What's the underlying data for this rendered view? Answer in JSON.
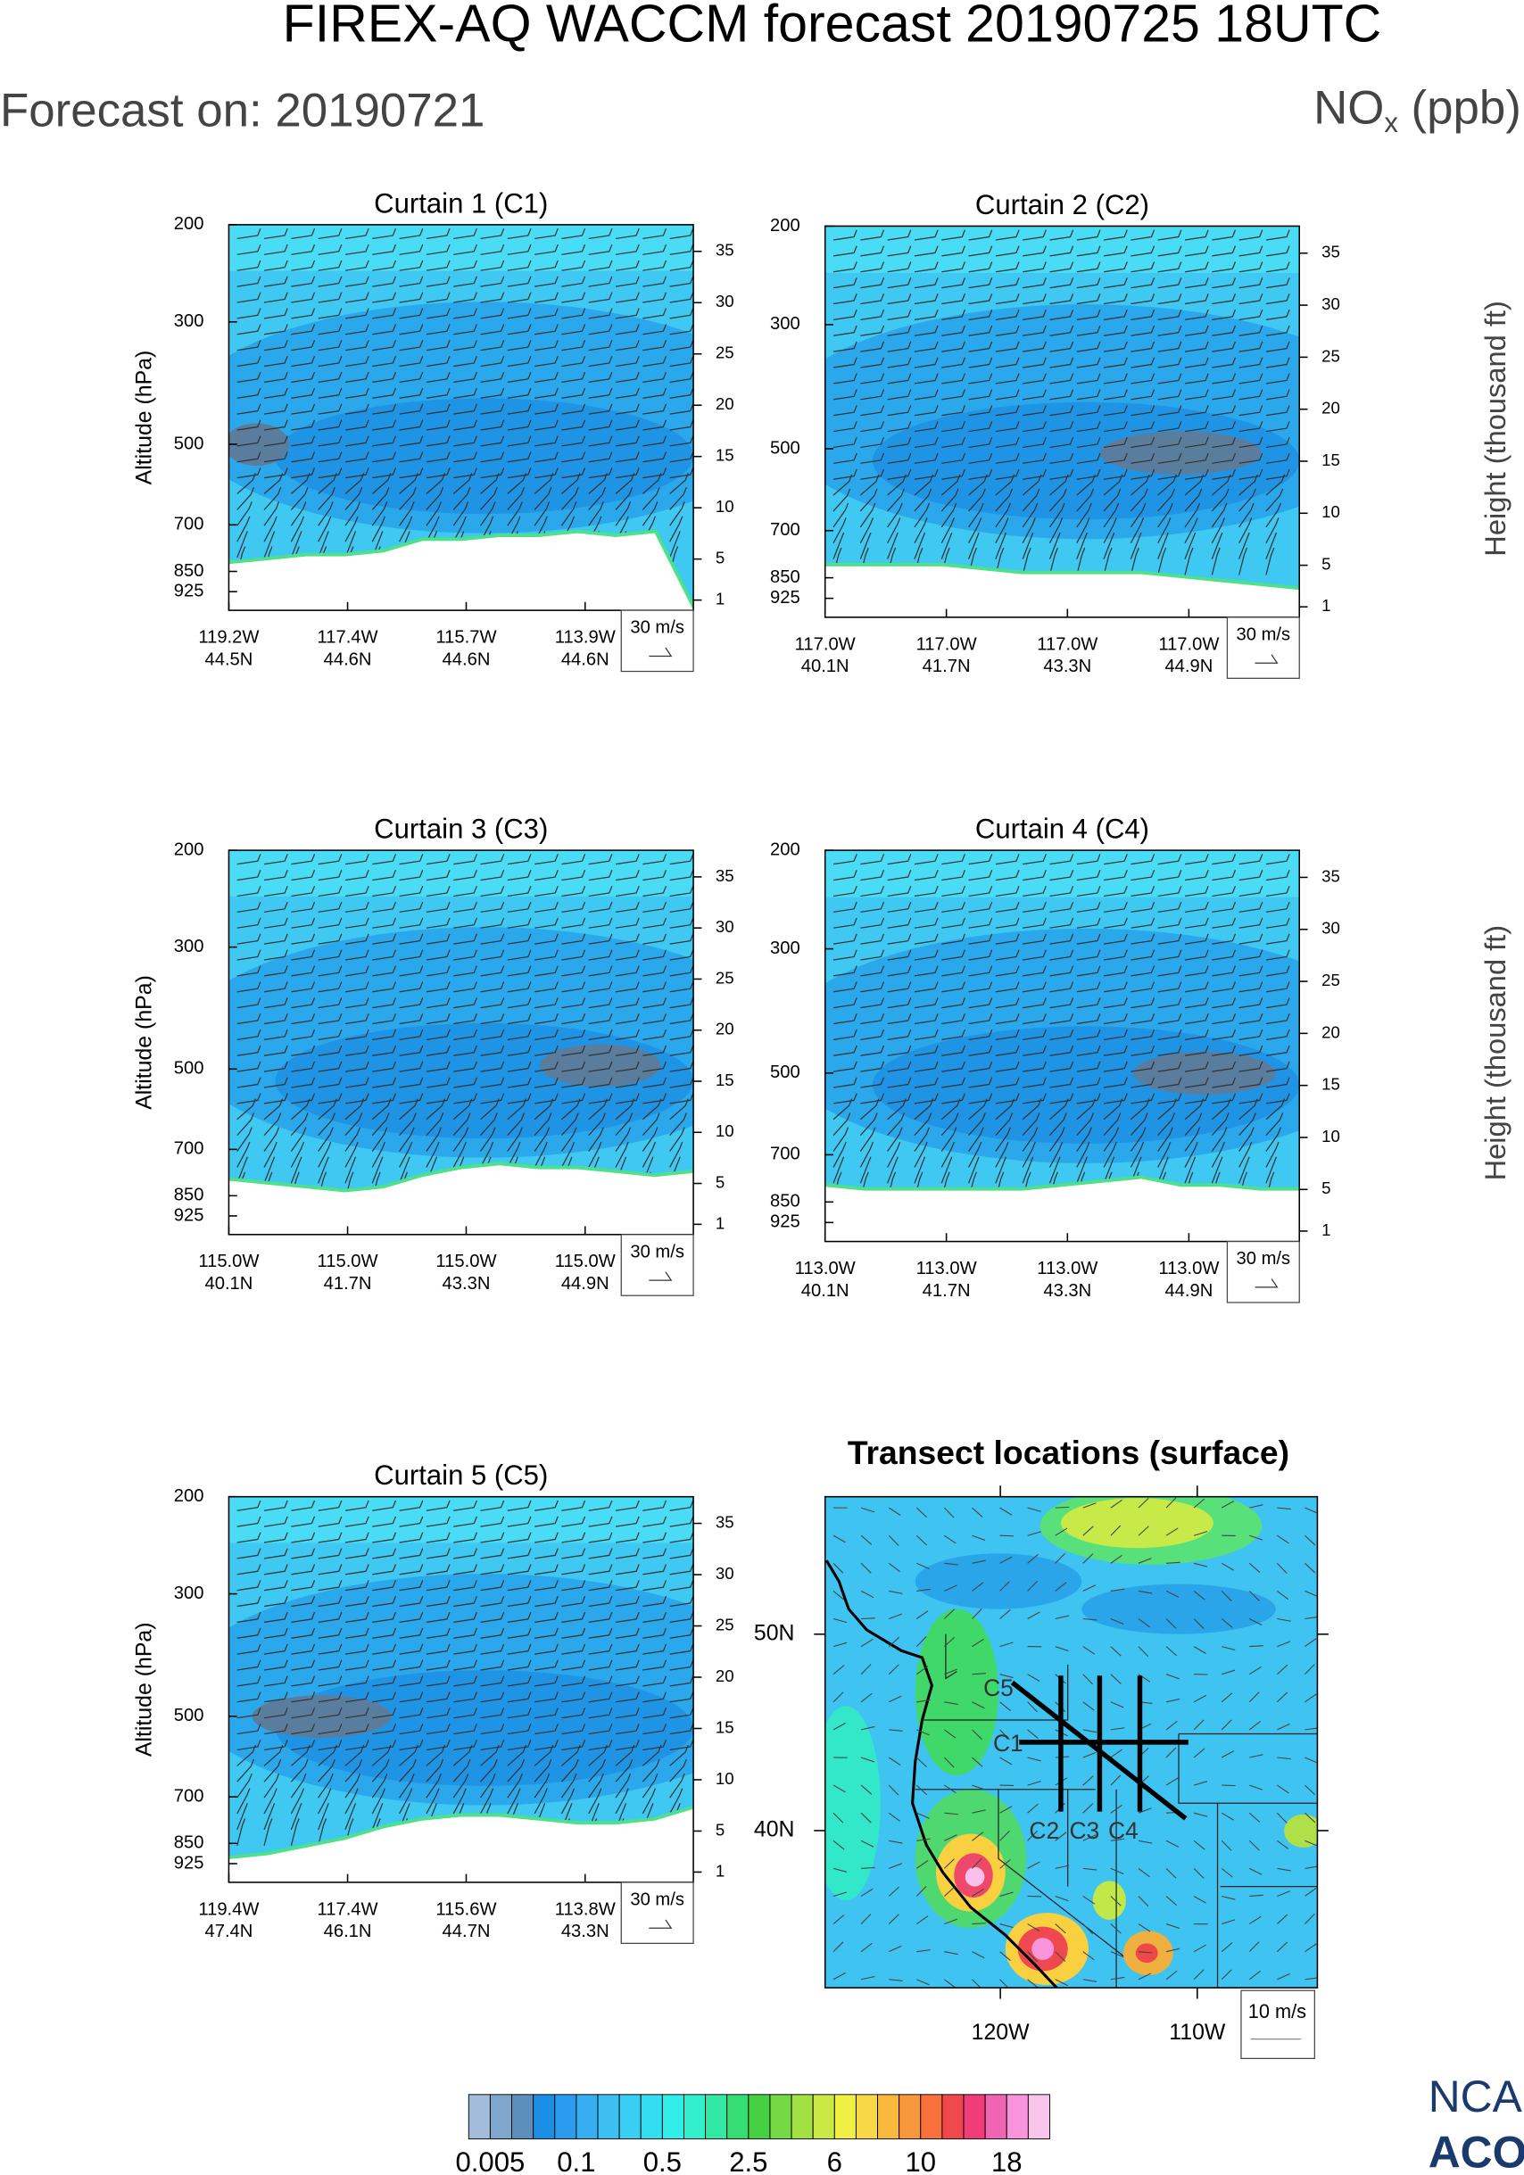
{
  "title": "FIREX-AQ WACCM forecast 20190725 18UTC",
  "subtitle": "Forecast on: 20190721",
  "unit": {
    "main": "NO",
    "sub": "x",
    "rest": " (ppb)"
  },
  "chart_data": [
    {
      "type": "curtain",
      "title": "Curtain 1 (C1)",
      "ylabel": "Altitude (hPa)",
      "y_log": true,
      "ylim": [
        200,
        1000
      ],
      "yticks": [
        200,
        300,
        500,
        700,
        850,
        925
      ],
      "y2lim": [
        0,
        37.6
      ],
      "y2ticks": [
        1,
        5,
        10,
        15,
        20,
        25,
        30,
        35
      ],
      "x_labels": [
        [
          "119.2W",
          "44.5N"
        ],
        [
          "117.4W",
          "44.6N"
        ],
        [
          "115.7W",
          "44.6N"
        ],
        [
          "113.9W",
          "44.6N"
        ]
      ],
      "wind_ref": "30 m/s"
    },
    {
      "type": "curtain",
      "title": "Curtain 2 (C2)",
      "y_log": true,
      "ylim": [
        200,
        1000
      ],
      "yticks": [
        200,
        300,
        500,
        700,
        850,
        925
      ],
      "y2lim": [
        0,
        37.6
      ],
      "y2ticks": [
        1,
        5,
        10,
        15,
        20,
        25,
        30,
        35
      ],
      "y2label": "Height (thousand ft)",
      "x_labels": [
        [
          "117.0W",
          "40.1N"
        ],
        [
          "117.0W",
          "41.7N"
        ],
        [
          "117.0W",
          "43.3N"
        ],
        [
          "117.0W",
          "44.9N"
        ]
      ],
      "wind_ref": "30 m/s"
    },
    {
      "type": "curtain",
      "title": "Curtain 3 (C3)",
      "ylabel": "Altitude (hPa)",
      "y_log": true,
      "ylim": [
        200,
        1000
      ],
      "yticks": [
        200,
        300,
        500,
        700,
        850,
        925
      ],
      "y2lim": [
        0,
        37.6
      ],
      "y2ticks": [
        1,
        5,
        10,
        15,
        20,
        25,
        30,
        35
      ],
      "x_labels": [
        [
          "115.0W",
          "40.1N"
        ],
        [
          "115.0W",
          "41.7N"
        ],
        [
          "115.0W",
          "43.3N"
        ],
        [
          "115.0W",
          "44.9N"
        ]
      ],
      "wind_ref": "30 m/s"
    },
    {
      "type": "curtain",
      "title": "Curtain 4 (C4)",
      "y_log": true,
      "ylim": [
        200,
        1000
      ],
      "yticks": [
        200,
        300,
        500,
        700,
        850,
        925
      ],
      "y2lim": [
        0,
        37.6
      ],
      "y2ticks": [
        1,
        5,
        10,
        15,
        20,
        25,
        30,
        35
      ],
      "y2label": "Height (thousand ft)",
      "x_labels": [
        [
          "113.0W",
          "40.1N"
        ],
        [
          "113.0W",
          "41.7N"
        ],
        [
          "113.0W",
          "43.3N"
        ],
        [
          "113.0W",
          "44.9N"
        ]
      ],
      "wind_ref": "30 m/s"
    },
    {
      "type": "curtain",
      "title": "Curtain 5 (C5)",
      "ylabel": "Altitude (hPa)",
      "y_log": true,
      "ylim": [
        200,
        1000
      ],
      "yticks": [
        200,
        300,
        500,
        700,
        850,
        925
      ],
      "y2lim": [
        0,
        37.6
      ],
      "y2ticks": [
        1,
        5,
        10,
        15,
        20,
        25,
        30,
        35
      ],
      "x_labels": [
        [
          "119.4W",
          "47.4N"
        ],
        [
          "117.4W",
          "46.1N"
        ],
        [
          "115.6W",
          "44.7N"
        ],
        [
          "113.8W",
          "43.3N"
        ]
      ],
      "wind_ref": "30 m/s"
    },
    {
      "type": "map",
      "title": "Transect locations (surface)",
      "xlim": [
        -128.9,
        -103.9
      ],
      "ylim": [
        32.0,
        57.0
      ],
      "yticks": [
        {
          "value": 50,
          "label": "50N"
        },
        {
          "value": 40,
          "label": "40N"
        }
      ],
      "xticks": [
        {
          "value": -120,
          "label": "120W"
        },
        {
          "value": -110,
          "label": "110W"
        }
      ],
      "transects": [
        "C1",
        "C2",
        "C3",
        "C4",
        "C5"
      ],
      "wind_ref": "10 m/s"
    }
  ],
  "colorbar": {
    "colors": [
      "#a3bcd9",
      "#80a6cb",
      "#5c8fbb",
      "#1b8ee6",
      "#2a9cef",
      "#37aef2",
      "#3dbff3",
      "#38cff3",
      "#33def2",
      "#33eee8",
      "#33f0cc",
      "#33e8a4",
      "#35de74",
      "#45d044",
      "#74d944",
      "#a2e144",
      "#cae944",
      "#f0f044",
      "#f8d844",
      "#f8b83c",
      "#f8983c",
      "#f8703c",
      "#f0484c",
      "#f03c78",
      "#f064b4",
      "#f894dc",
      "#f8c4ea"
    ],
    "ticks": [
      0.005,
      0.1,
      0.5,
      2.5,
      6,
      10,
      18
    ]
  },
  "logo": [
    "NCA",
    "ACO"
  ]
}
